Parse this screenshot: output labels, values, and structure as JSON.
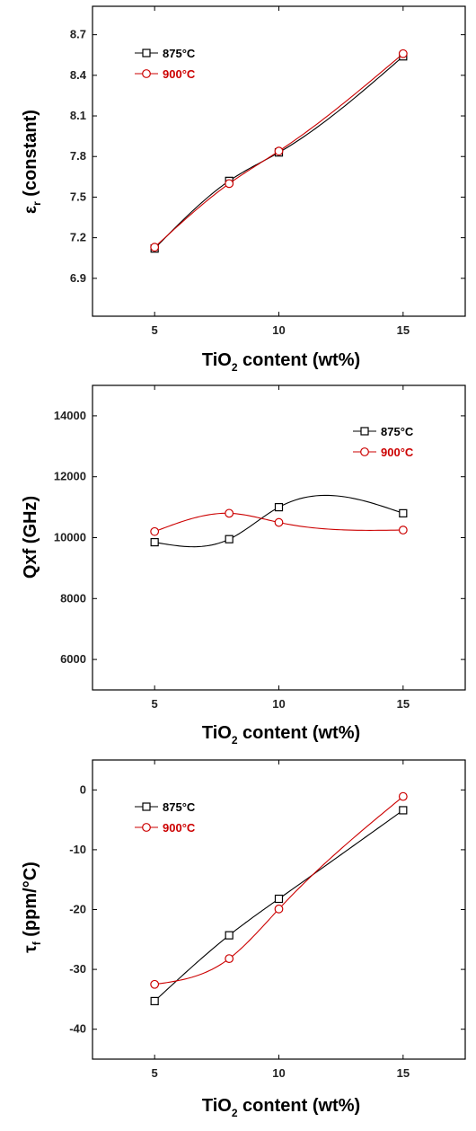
{
  "chart_data": [
    {
      "type": "line",
      "xlabel": "TiO₂ content (wt%)",
      "ylabel": "εr (constant)",
      "x": [
        5,
        8,
        10,
        15
      ],
      "xticks": [
        5,
        10,
        15
      ],
      "yticks": [
        "6.9",
        "7.2",
        "7.5",
        "7.8",
        "8.1",
        "8.4",
        "8.7"
      ],
      "xlim": [
        2.5,
        17.5
      ],
      "ylim": [
        6.62,
        8.91
      ],
      "legend_position": "top-left",
      "series": [
        {
          "name": "875°C",
          "values": [
            7.12,
            7.62,
            7.83,
            8.54
          ],
          "color": "#000000",
          "marker": "square"
        },
        {
          "name": "900°C",
          "values": [
            7.13,
            7.6,
            7.84,
            8.56
          ],
          "color": "#cc0000",
          "marker": "circle"
        }
      ]
    },
    {
      "type": "line",
      "xlabel": "TiO₂ content (wt%)",
      "ylabel": "Qxf (GHz)",
      "x": [
        5,
        8,
        10,
        15
      ],
      "xticks": [
        5,
        10,
        15
      ],
      "yticks": [
        "6000",
        "8000",
        "10000",
        "12000",
        "14000"
      ],
      "xlim": [
        2.5,
        17.5
      ],
      "ylim": [
        5000,
        15000
      ],
      "legend_position": "top-right",
      "series": [
        {
          "name": "875°C",
          "values": [
            9850,
            9950,
            11000,
            10800
          ],
          "color": "#000000",
          "marker": "square"
        },
        {
          "name": "900°C",
          "values": [
            10200,
            10800,
            10500,
            10250
          ],
          "color": "#cc0000",
          "marker": "circle"
        }
      ]
    },
    {
      "type": "line",
      "xlabel": "TiO₂ content (wt%)",
      "ylabel": "τf (ppm/°C)",
      "x": [
        5,
        8,
        10,
        15
      ],
      "xticks": [
        5,
        10,
        15
      ],
      "yticks": [
        "-40",
        "-30",
        "-20",
        "-10",
        "0"
      ],
      "xlim": [
        2.5,
        17.5
      ],
      "ylim": [
        -45,
        5
      ],
      "legend_position": "top-left",
      "series": [
        {
          "name": "875°C",
          "values": [
            -35.3,
            -24.3,
            -18.2,
            -3.4
          ],
          "color": "#000000",
          "marker": "square"
        },
        {
          "name": "900°C",
          "values": [
            -32.5,
            -28.2,
            -19.9,
            -1.1
          ],
          "color": "#cc0000",
          "marker": "circle"
        }
      ]
    }
  ]
}
